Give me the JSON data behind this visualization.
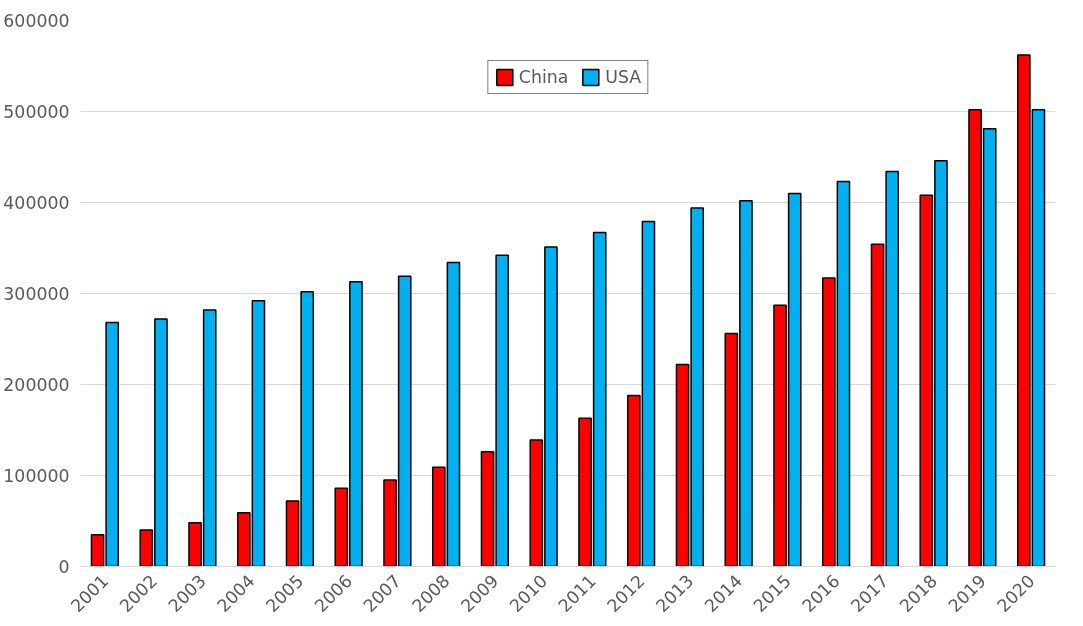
{
  "chart_data": {
    "type": "bar",
    "categories": [
      "2001",
      "2002",
      "2003",
      "2004",
      "2005",
      "2006",
      "2007",
      "2008",
      "2009",
      "2010",
      "2011",
      "2012",
      "2013",
      "2014",
      "2015",
      "2016",
      "2017",
      "2018",
      "2019",
      "2020"
    ],
    "series": [
      {
        "name": "China",
        "color": "#ff0000",
        "values": [
          35000,
          40000,
          48000,
          59000,
          72000,
          86000,
          95000,
          109000,
          126000,
          139000,
          163000,
          188000,
          222000,
          256000,
          287000,
          317000,
          354000,
          408000,
          502000,
          562000
        ]
      },
      {
        "name": "USA",
        "color": "#00b0f0",
        "values": [
          268000,
          272000,
          282000,
          292000,
          302000,
          313000,
          319000,
          334000,
          342000,
          351000,
          367000,
          379000,
          394000,
          402000,
          410000,
          423000,
          434000,
          446000,
          481000,
          502000
        ]
      }
    ],
    "ylim": [
      0,
      600000
    ],
    "yticks": [
      0,
      100000,
      200000,
      300000,
      400000,
      500000,
      600000
    ],
    "grid": "y",
    "legend": "top"
  }
}
